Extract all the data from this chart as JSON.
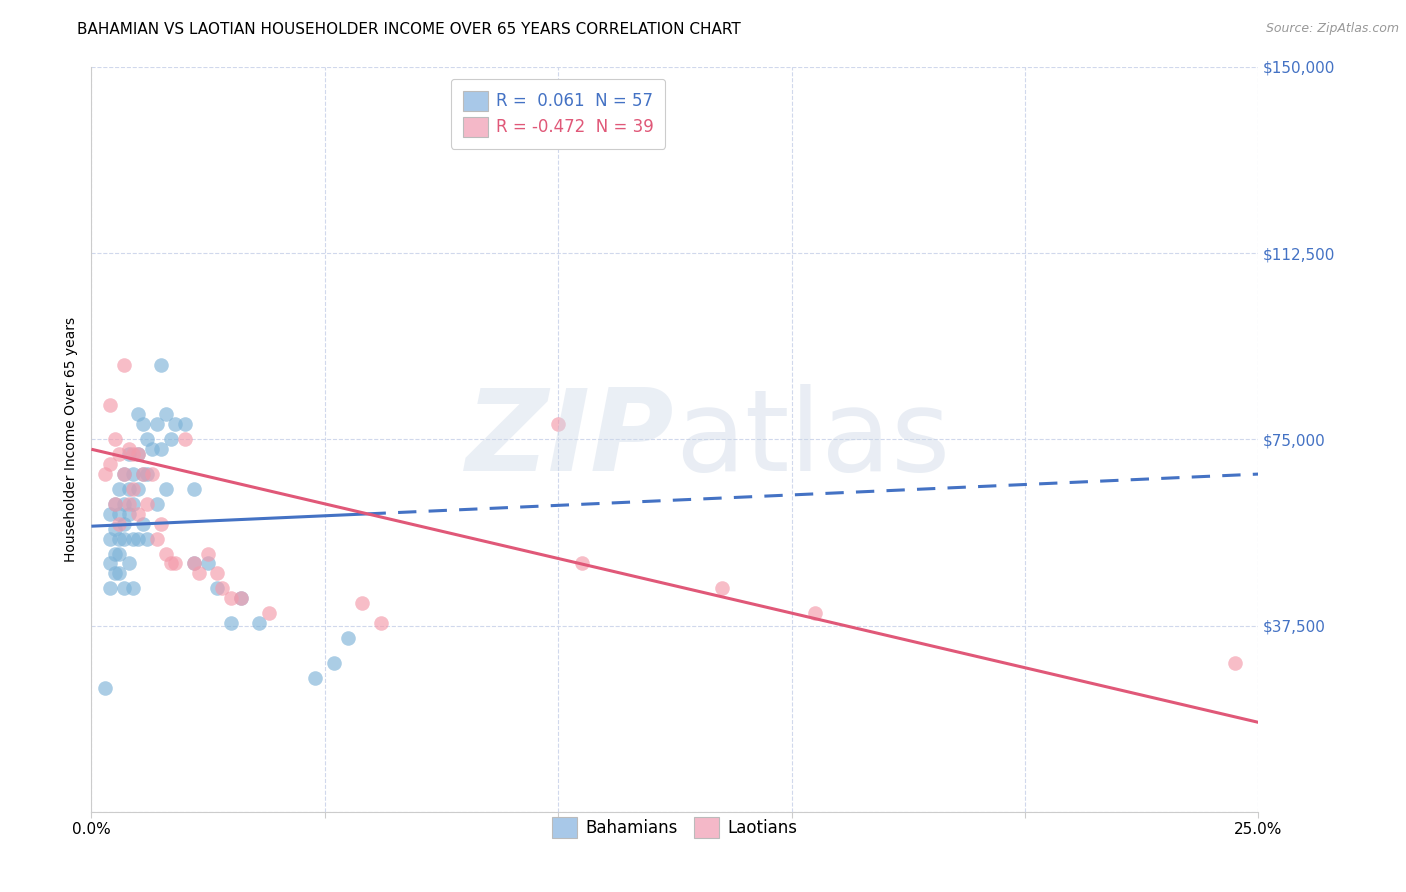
{
  "title": "BAHAMIAN VS LAOTIAN HOUSEHOLDER INCOME OVER 65 YEARS CORRELATION CHART",
  "source": "Source: ZipAtlas.com",
  "ylabel": "Householder Income Over 65 years",
  "xlim": [
    0.0,
    0.25
  ],
  "ylim": [
    0,
    150000
  ],
  "xticks": [
    0.0,
    0.05,
    0.1,
    0.15,
    0.2,
    0.25
  ],
  "xtick_labels": [
    "0.0%",
    "",
    "",
    "",
    "",
    "25.0%"
  ],
  "yticks": [
    0,
    37500,
    75000,
    112500,
    150000
  ],
  "ytick_labels": [
    "",
    "$37,500",
    "$75,000",
    "$112,500",
    "$150,000"
  ],
  "blue_scatter_color": "#7eb3d8",
  "pink_scatter_color": "#f49aaa",
  "blue_line_color": "#4472c4",
  "pink_line_color": "#e05878",
  "grid_color": "#d0d8ec",
  "background_color": "#ffffff",
  "legend1_blue_patch": "#a8c8e8",
  "legend1_pink_patch": "#f4b8c8",
  "legend1_blue_label": "R =  0.061  N = 57",
  "legend1_pink_label": "R = -0.472  N = 39",
  "legend1_blue_text_color": "#4472c4",
  "legend1_pink_text_color": "#e05878",
  "legend2_labels": [
    "Bahamians",
    "Laotians"
  ],
  "title_fontsize": 11,
  "tick_fontsize": 11,
  "ylabel_fontsize": 10,
  "legend_fontsize": 12,
  "blue_regression_x0": 0.0,
  "blue_regression_y0": 57500,
  "blue_regression_x1": 0.25,
  "blue_regression_y1": 68000,
  "pink_regression_x0": 0.0,
  "pink_regression_y0": 73000,
  "pink_regression_x1": 0.25,
  "pink_regression_y1": 18000,
  "bahamian_x": [
    0.003,
    0.004,
    0.004,
    0.004,
    0.004,
    0.005,
    0.005,
    0.005,
    0.005,
    0.006,
    0.006,
    0.006,
    0.006,
    0.006,
    0.007,
    0.007,
    0.007,
    0.007,
    0.007,
    0.008,
    0.008,
    0.008,
    0.008,
    0.009,
    0.009,
    0.009,
    0.009,
    0.01,
    0.01,
    0.01,
    0.01,
    0.011,
    0.011,
    0.011,
    0.012,
    0.012,
    0.012,
    0.013,
    0.014,
    0.014,
    0.015,
    0.015,
    0.016,
    0.016,
    0.017,
    0.018,
    0.02,
    0.022,
    0.022,
    0.025,
    0.027,
    0.03,
    0.032,
    0.036,
    0.048,
    0.052,
    0.055
  ],
  "bahamian_y": [
    25000,
    60000,
    55000,
    50000,
    45000,
    62000,
    57000,
    52000,
    48000,
    65000,
    60000,
    55000,
    52000,
    48000,
    68000,
    62000,
    58000,
    55000,
    45000,
    72000,
    65000,
    60000,
    50000,
    68000,
    62000,
    55000,
    45000,
    80000,
    72000,
    65000,
    55000,
    78000,
    68000,
    58000,
    75000,
    68000,
    55000,
    73000,
    78000,
    62000,
    90000,
    73000,
    80000,
    65000,
    75000,
    78000,
    78000,
    65000,
    50000,
    50000,
    45000,
    38000,
    43000,
    38000,
    27000,
    30000,
    35000
  ],
  "laotian_x": [
    0.003,
    0.004,
    0.004,
    0.005,
    0.005,
    0.006,
    0.006,
    0.007,
    0.007,
    0.008,
    0.008,
    0.009,
    0.009,
    0.01,
    0.01,
    0.011,
    0.012,
    0.013,
    0.014,
    0.015,
    0.016,
    0.017,
    0.018,
    0.02,
    0.022,
    0.023,
    0.025,
    0.027,
    0.028,
    0.03,
    0.032,
    0.038,
    0.058,
    0.062,
    0.1,
    0.105,
    0.135,
    0.155,
    0.245
  ],
  "laotian_y": [
    68000,
    82000,
    70000,
    75000,
    62000,
    72000,
    58000,
    90000,
    68000,
    73000,
    62000,
    72000,
    65000,
    72000,
    60000,
    68000,
    62000,
    68000,
    55000,
    58000,
    52000,
    50000,
    50000,
    75000,
    50000,
    48000,
    52000,
    48000,
    45000,
    43000,
    43000,
    40000,
    42000,
    38000,
    78000,
    50000,
    45000,
    40000,
    30000
  ]
}
